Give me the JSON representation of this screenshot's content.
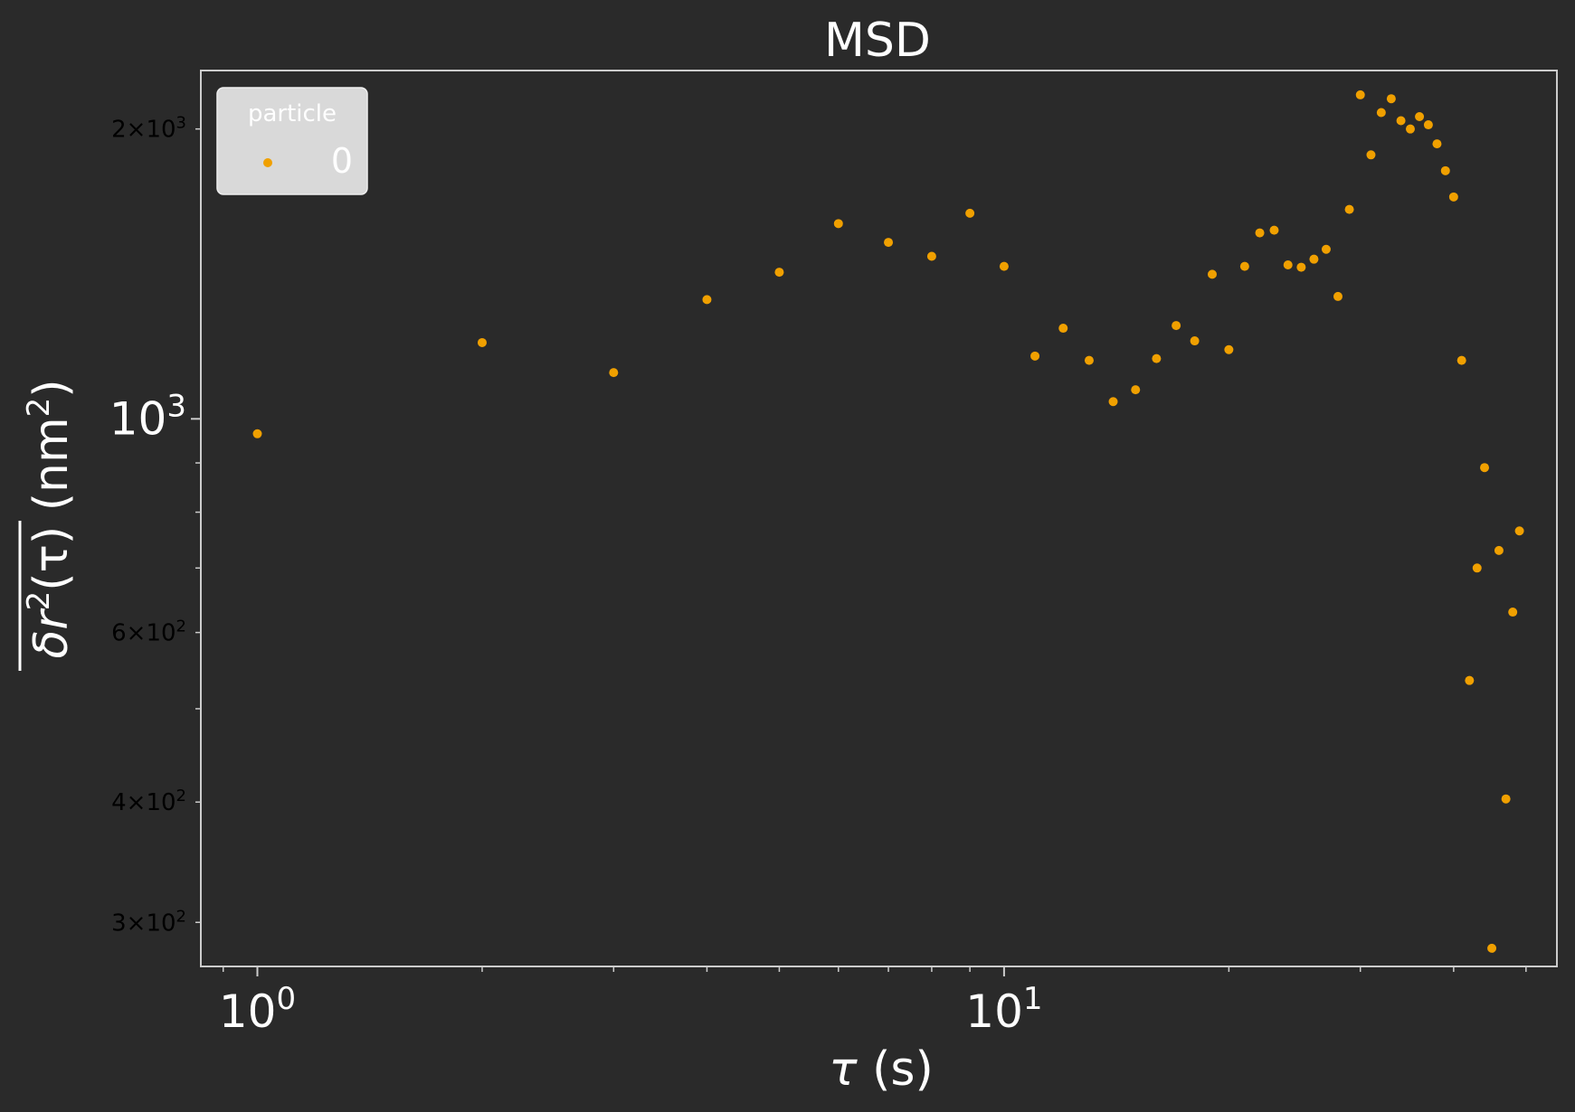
{
  "chart_data": {
    "type": "scatter",
    "title": "MSD",
    "xlabel": {
      "symbol": "τ",
      "unit": " (s)"
    },
    "ylabel": {
      "base": "δr",
      "sup": "2",
      "arg": "(τ)",
      "unit_open": " (nm",
      "unit_sup": "2",
      "unit_close": ")"
    },
    "x_scale": "log",
    "y_scale": "log",
    "xlim": [
      0.84,
      55
    ],
    "ylim": [
      270,
      2300
    ],
    "x_major_ticks": [
      {
        "value": 1,
        "base": "10",
        "exp": "0"
      },
      {
        "value": 10,
        "base": "10",
        "exp": "1"
      }
    ],
    "y_major_ticks": [
      {
        "value": 1000,
        "base": "10",
        "exp": "3"
      }
    ],
    "y_minor_labeled_ticks": [
      {
        "value": 2000,
        "mant": "2",
        "times": "×",
        "base": "10",
        "exp": "3"
      },
      {
        "value": 600,
        "mant": "6",
        "times": "×",
        "base": "10",
        "exp": "2"
      },
      {
        "value": 400,
        "mant": "4",
        "times": "×",
        "base": "10",
        "exp": "2"
      },
      {
        "value": 300,
        "mant": "3",
        "times": "×",
        "base": "10",
        "exp": "2"
      }
    ],
    "legend": {
      "title": "particle",
      "position": "top-left",
      "entries": [
        "0"
      ]
    },
    "marker_color": "#f0a000",
    "series": [
      {
        "name": "0",
        "points": [
          [
            1,
            965
          ],
          [
            2,
            1200
          ],
          [
            3,
            1117
          ],
          [
            4,
            1330
          ],
          [
            5,
            1420
          ],
          [
            6,
            1595
          ],
          [
            7,
            1525
          ],
          [
            8,
            1475
          ],
          [
            9,
            1635
          ],
          [
            10,
            1440
          ],
          [
            11,
            1162
          ],
          [
            12,
            1242
          ],
          [
            13,
            1150
          ],
          [
            14,
            1042
          ],
          [
            15,
            1072
          ],
          [
            16,
            1155
          ],
          [
            17,
            1250
          ],
          [
            18,
            1205
          ],
          [
            19,
            1413
          ],
          [
            20,
            1180
          ],
          [
            21,
            1440
          ],
          [
            22,
            1560
          ],
          [
            23,
            1570
          ],
          [
            24,
            1445
          ],
          [
            25,
            1437
          ],
          [
            26,
            1465
          ],
          [
            27,
            1500
          ],
          [
            28,
            1340
          ],
          [
            29,
            1650
          ],
          [
            30,
            2170
          ],
          [
            31,
            1880
          ],
          [
            32,
            2080
          ],
          [
            33,
            2150
          ],
          [
            34,
            2040
          ],
          [
            35,
            2000
          ],
          [
            36,
            2060
          ],
          [
            37,
            2020
          ],
          [
            38,
            1930
          ],
          [
            39,
            1810
          ],
          [
            40,
            1700
          ],
          [
            41,
            1150
          ],
          [
            42,
            535
          ],
          [
            43,
            700
          ],
          [
            44,
            890
          ],
          [
            45,
            282
          ],
          [
            46,
            730
          ],
          [
            47,
            403
          ],
          [
            48,
            630
          ],
          [
            49,
            765
          ]
        ]
      }
    ]
  }
}
